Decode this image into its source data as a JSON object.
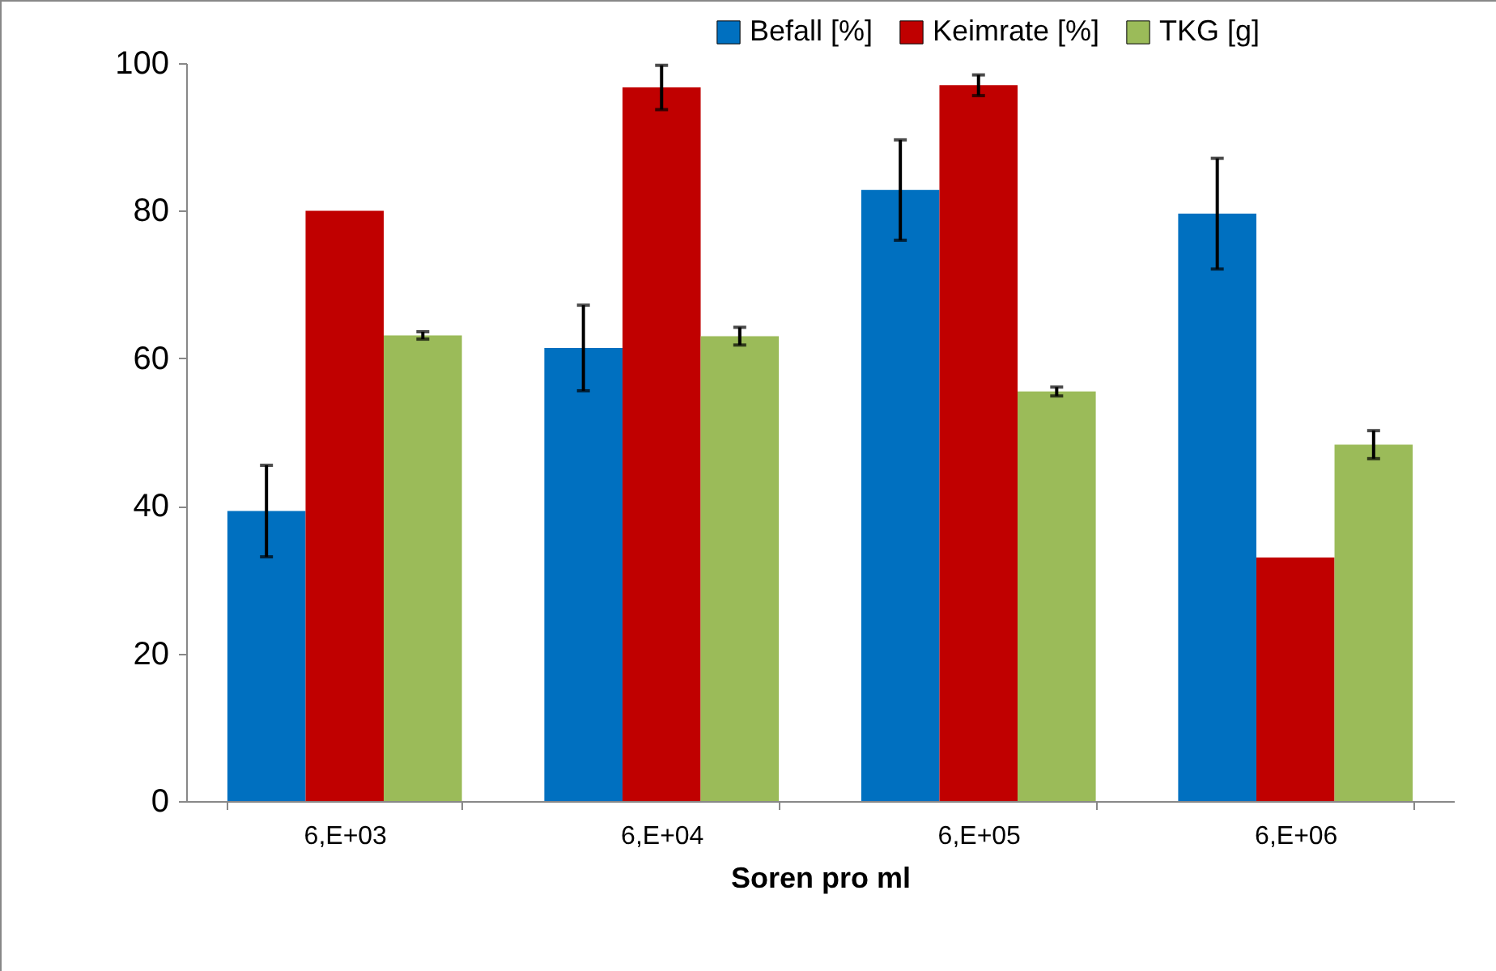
{
  "chart_data": {
    "type": "bar",
    "xlabel": "Soren pro ml",
    "categories": [
      "6,E+03",
      "6,E+04",
      "6,E+05",
      "6,E+06"
    ],
    "series": [
      {
        "name": "Befall [%]",
        "color": "#0070c0",
        "values": [
          39.3,
          61.4,
          82.8,
          79.6
        ],
        "errors": [
          6.2,
          5.8,
          6.8,
          7.5
        ]
      },
      {
        "name": "Keimrate [%]",
        "color": "#c00000",
        "values": [
          80,
          96.7,
          97,
          33
        ],
        "errors": [
          null,
          3,
          1.4,
          null
        ]
      },
      {
        "name": "TKG [g]",
        "color": "#9bbb59",
        "values": [
          63.1,
          63,
          55.5,
          48.3
        ],
        "errors": [
          0.5,
          1.2,
          0.6,
          1.9
        ]
      }
    ],
    "ylim": [
      0,
      100
    ],
    "yticks": [
      0,
      20,
      40,
      60,
      80,
      100
    ],
    "grid": false,
    "legend": "top right"
  }
}
